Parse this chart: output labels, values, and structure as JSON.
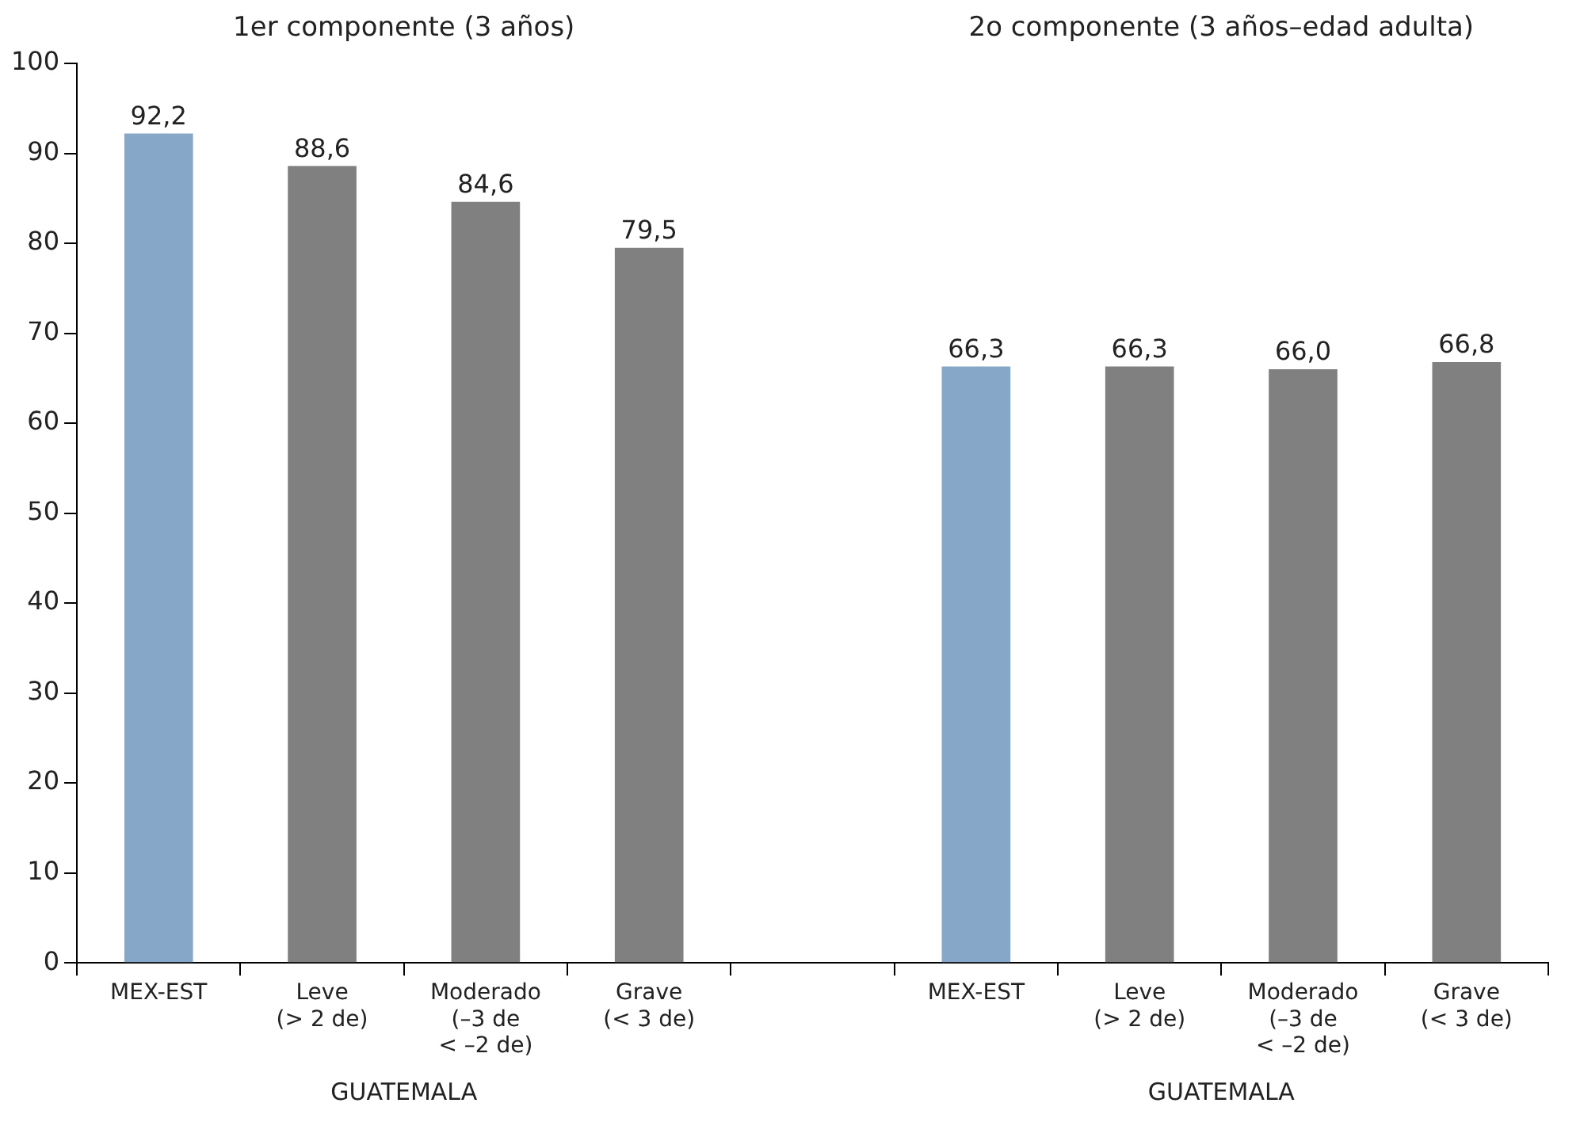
{
  "chart_data": {
    "type": "bar",
    "categories": [
      "MEX-EST",
      "Leve\n(> 2 de)",
      "Moderado\n(–3 de\n< –2 de)",
      "Grave\n(< 3 de)",
      null,
      "MEX-EST",
      "Leve\n(> 2 de)",
      "Moderado\n(–3 de\n< –2 de)",
      "Grave\n(< 3 de)"
    ],
    "values": [
      92.2,
      88.6,
      84.6,
      79.5,
      null,
      66.3,
      66.3,
      66.0,
      66.8
    ],
    "value_labels": [
      "92,2",
      "88,6",
      "84,6",
      "79,5",
      null,
      "66,3",
      "66,3",
      "66,0",
      "66,8"
    ],
    "colors": [
      "#87a7c9",
      "#808080",
      "#808080",
      "#808080",
      "#808080",
      "#87a7c9",
      "#808080",
      "#808080",
      "#808080"
    ],
    "ylim": [
      0,
      100
    ],
    "yticks": [
      0,
      10,
      20,
      30,
      40,
      50,
      60,
      70,
      80,
      90,
      100
    ],
    "grid": false,
    "legend": false,
    "annotations": [
      "1er componente (3 años)",
      "2o componente (3 años–edad adulta)",
      "GUATEMALA",
      "GUATEMALA"
    ]
  }
}
